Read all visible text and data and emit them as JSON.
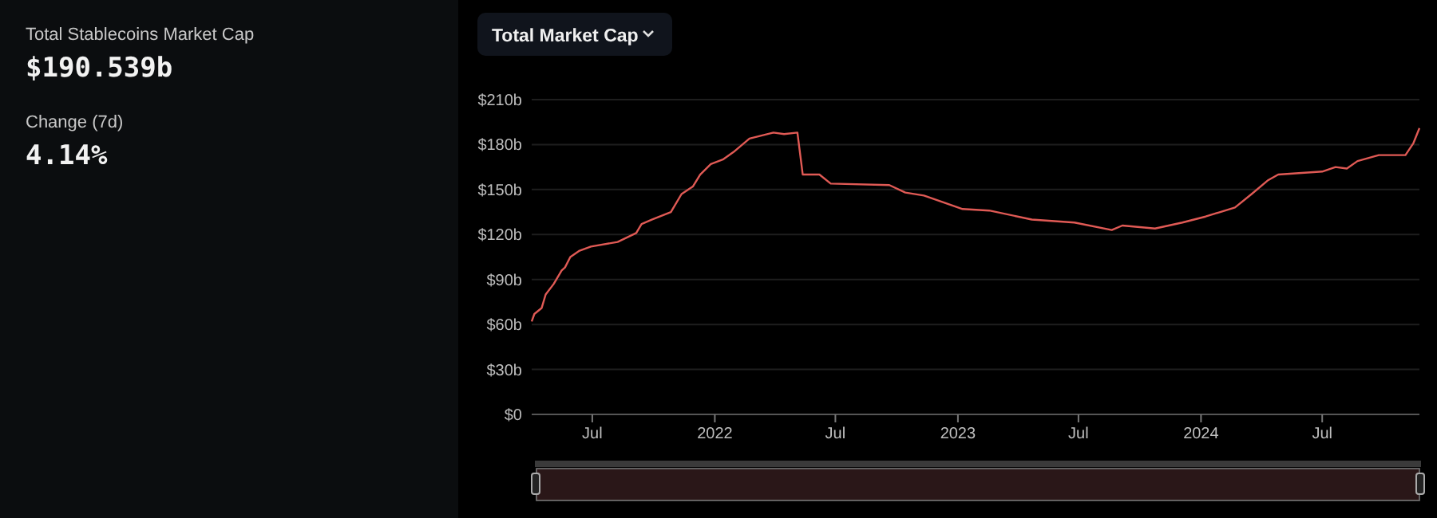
{
  "chart_data": {
    "type": "line",
    "title": "Total Market Cap",
    "annotations": [
      "Total Stablecoins Market Cap",
      "$190.539b",
      "Change (7d)",
      "4.14%"
    ],
    "x": [
      "2021-04-01",
      "2021-04-05",
      "2021-04-16",
      "2021-04-22",
      "2021-05-04",
      "2021-05-16",
      "2021-05-21",
      "2021-05-29",
      "2021-06-11",
      "2021-06-29",
      "2021-08-08",
      "2021-09-05",
      "2021-09-13",
      "2021-09-29",
      "2021-10-27",
      "2021-11-12",
      "2021-11-29",
      "2021-12-10",
      "2021-12-26",
      "2022-01-13",
      "2022-01-29",
      "2022-02-22",
      "2022-03-30",
      "2022-04-15",
      "2022-05-05",
      "2022-05-13",
      "2022-06-07",
      "2022-06-24",
      "2022-09-20",
      "2022-10-14",
      "2022-11-11",
      "2023-01-08",
      "2023-02-17",
      "2023-04-22",
      "2023-06-25",
      "2023-08-20",
      "2023-09-05",
      "2023-10-24",
      "2023-12-04",
      "2024-01-08",
      "2024-02-21",
      "2024-03-17",
      "2024-04-10",
      "2024-04-26",
      "2024-07-01",
      "2024-07-21",
      "2024-08-07",
      "2024-08-23",
      "2024-09-24",
      "2024-11-03",
      "2024-11-15",
      "2024-11-24"
    ],
    "series": [
      {
        "color": "#e05a55",
        "values": [
          62,
          67,
          71,
          80,
          87,
          96,
          98,
          105,
          109,
          112,
          115,
          121,
          127,
          130,
          135,
          147,
          152,
          160,
          167,
          170,
          175,
          184,
          188,
          187,
          188,
          160,
          160,
          154,
          153,
          148,
          146,
          137,
          136,
          130,
          128,
          123,
          126,
          124,
          128,
          132,
          138,
          147,
          156,
          160,
          162,
          165,
          164,
          169,
          173,
          173,
          181,
          191
        ]
      }
    ],
    "xlim": [
      "2021-04-01",
      "2024-11-24"
    ],
    "xticks": [
      {
        "value": "2021-07-01",
        "label": "Jul"
      },
      {
        "value": "2022-01-01",
        "label": "2022"
      },
      {
        "value": "2022-07-01",
        "label": "Jul"
      },
      {
        "value": "2023-01-01",
        "label": "2023"
      },
      {
        "value": "2023-07-01",
        "label": "Jul"
      },
      {
        "value": "2024-01-01",
        "label": "2024"
      },
      {
        "value": "2024-07-01",
        "label": "Jul"
      }
    ],
    "ylim": [
      0,
      210
    ],
    "yticks": [
      {
        "value": 0,
        "label": "$0"
      },
      {
        "value": 30,
        "label": "$30b"
      },
      {
        "value": 60,
        "label": "$60b"
      },
      {
        "value": 90,
        "label": "$90b"
      },
      {
        "value": 120,
        "label": "$120b"
      },
      {
        "value": 150,
        "label": "$150b"
      },
      {
        "value": 180,
        "label": "$180b"
      },
      {
        "value": 210,
        "label": "$210b"
      }
    ],
    "grid": "y",
    "marker": "none",
    "line_style": "solid"
  }
}
